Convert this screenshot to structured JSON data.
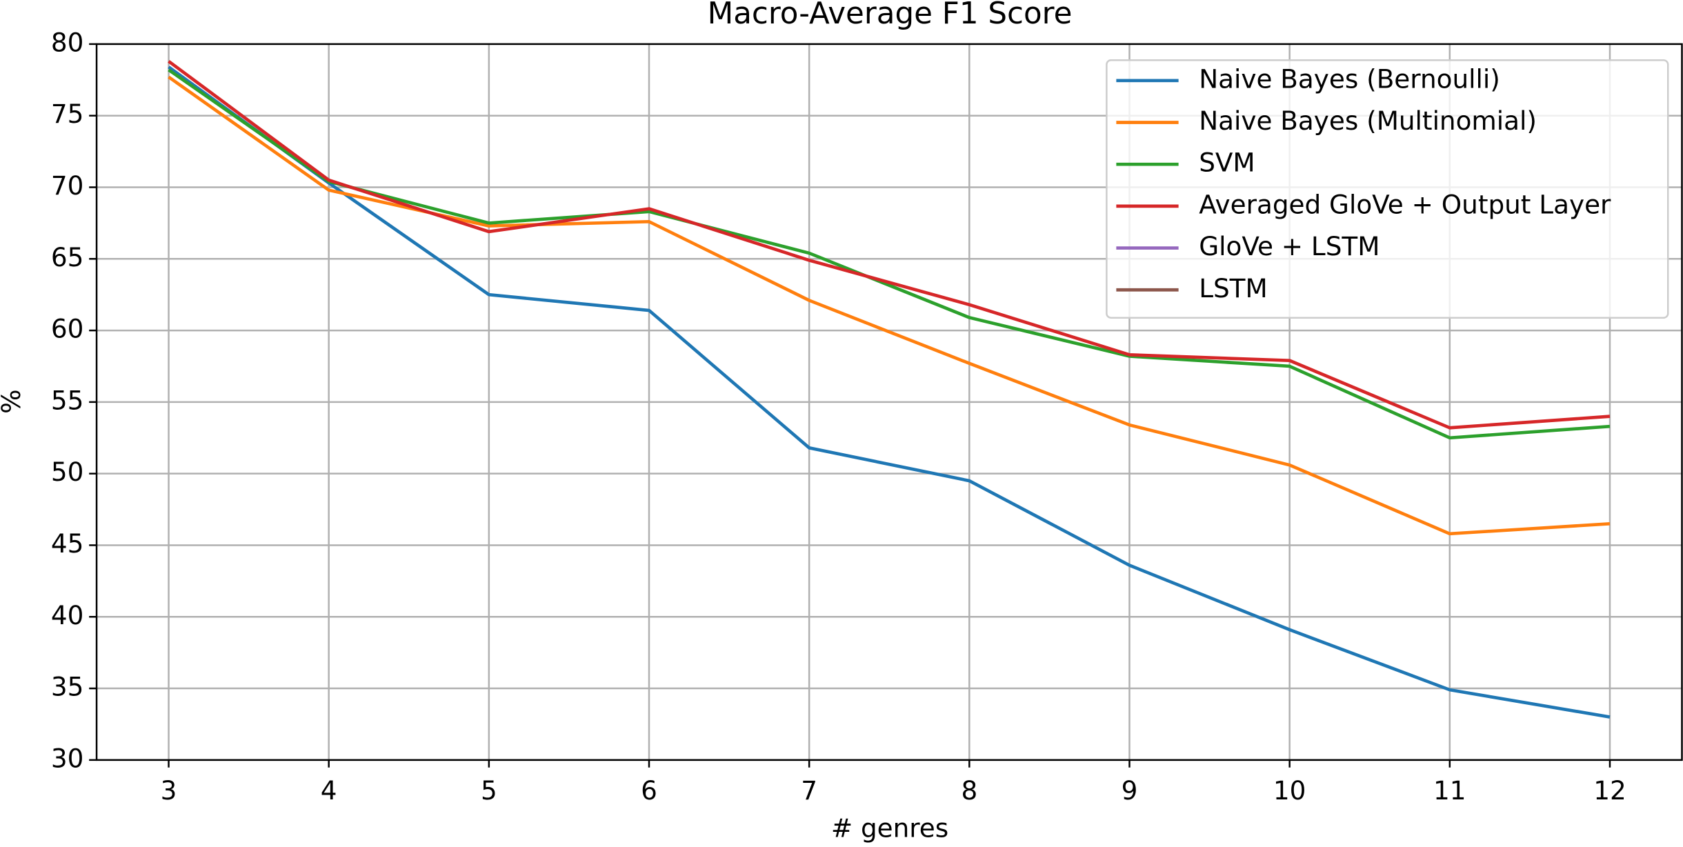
{
  "chart_data": {
    "type": "line",
    "title": "Macro-Average F1 Score",
    "xlabel": "# genres",
    "ylabel": "%",
    "x": [
      3,
      4,
      5,
      6,
      7,
      8,
      9,
      10,
      11,
      12
    ],
    "series": [
      {
        "name": "Naive Bayes (Bernoulli)",
        "color": "#1f77b4",
        "values": [
          78.4,
          70.3,
          62.5,
          61.4,
          51.8,
          49.5,
          43.6,
          39.1,
          34.9,
          33.0
        ]
      },
      {
        "name": "Naive Bayes (Multinomial)",
        "color": "#ff7f0e",
        "values": [
          77.7,
          69.8,
          67.3,
          67.6,
          62.1,
          57.7,
          53.4,
          50.6,
          45.8,
          46.5
        ]
      },
      {
        "name": "SVM",
        "color": "#2ca02c",
        "values": [
          78.2,
          70.4,
          67.5,
          68.3,
          65.4,
          60.9,
          58.2,
          57.5,
          52.5,
          53.3
        ]
      },
      {
        "name": "Averaged GloVe + Output Layer",
        "color": "#d62728",
        "values": [
          78.8,
          70.5,
          66.9,
          68.5,
          64.9,
          61.8,
          58.3,
          57.9,
          53.2,
          54.0
        ]
      },
      {
        "name": "GloVe + LSTM",
        "color": "#9467bd",
        "values": [
          null,
          null,
          null,
          null,
          null,
          null,
          null,
          null,
          null,
          null
        ]
      },
      {
        "name": "LSTM",
        "color": "#8c564b",
        "values": [
          null,
          null,
          null,
          null,
          null,
          null,
          null,
          null,
          null,
          null
        ]
      }
    ],
    "xlim": [
      2.55,
      12.45
    ],
    "xticks": [
      3,
      4,
      5,
      6,
      7,
      8,
      9,
      10,
      11,
      12
    ],
    "ylim": [
      30,
      80
    ],
    "yticks": [
      30,
      35,
      40,
      45,
      50,
      55,
      60,
      65,
      70,
      75,
      80
    ],
    "grid": true,
    "legend": "upper right"
  }
}
